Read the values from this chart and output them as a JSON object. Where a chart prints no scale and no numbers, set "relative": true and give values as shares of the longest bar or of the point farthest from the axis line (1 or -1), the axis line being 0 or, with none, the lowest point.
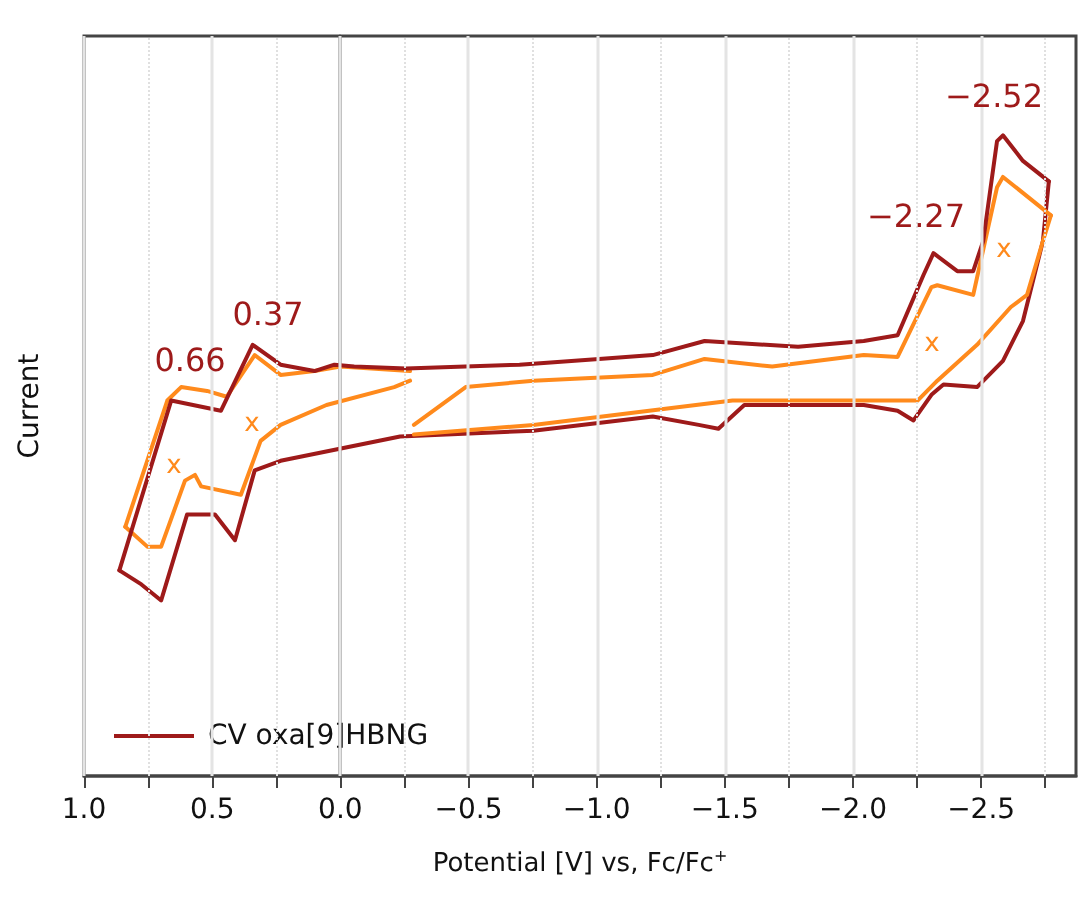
{
  "chart_data": {
    "type": "line",
    "relative": true,
    "xlabel": "Potential [V] vs, Fc/Fc$^{+}$",
    "ylabel": "Current",
    "xlim": [
      1.0,
      -2.87
    ],
    "xticks": [
      {
        "value": 1.0,
        "label": "1.0"
      },
      {
        "value": 0.75,
        "label": null
      },
      {
        "value": 0.5,
        "label": "0.5"
      },
      {
        "value": 0.25,
        "label": null
      },
      {
        "value": 0.0,
        "label": "0.0"
      },
      {
        "value": -0.25,
        "label": null
      },
      {
        "value": -0.5,
        "label": "−0.5"
      },
      {
        "value": -0.75,
        "label": null
      },
      {
        "value": -1.0,
        "label": "−1.0"
      },
      {
        "value": -1.25,
        "label": null
      },
      {
        "value": -1.5,
        "label": "−1.5"
      },
      {
        "value": -1.75,
        "label": null
      },
      {
        "value": -2.0,
        "label": "−2.0"
      },
      {
        "value": -2.25,
        "label": null
      },
      {
        "value": -2.5,
        "label": "−2.5"
      },
      {
        "value": -2.75,
        "label": null
      }
    ],
    "grid": "x",
    "legend": "bottom left",
    "marker": "none",
    "line_style": "solid",
    "series": [
      {
        "name": "CV oxa[9]HBNG",
        "color": "#9e1a1a",
        "x": [
          0.862,
          0.66,
          0.466,
          0.342,
          0.233,
          0.101,
          0.023,
          -0.054,
          -0.256,
          -0.699,
          -1.009,
          -1.219,
          -1.421,
          -1.786,
          -2.042,
          -2.174,
          -2.275,
          -2.314,
          -2.407,
          -2.469,
          -2.508,
          -2.562,
          -2.585,
          -2.663,
          -2.764
        ],
        "values": [
          0.321,
          0.586,
          0.57,
          0.673,
          0.642,
          0.632,
          0.642,
          0.639,
          0.636,
          0.642,
          0.651,
          0.657,
          0.679,
          0.67,
          0.679,
          0.688,
          0.782,
          0.816,
          0.788,
          0.788,
          0.835,
          0.991,
          1.0,
          0.96,
          0.928
        ]
      },
      {
        "color": "#9e1a1a",
        "x": [
          -2.764,
          -2.741,
          -2.663,
          -2.585,
          -2.484,
          -2.353,
          -2.306,
          -2.236,
          -2.174,
          -2.042,
          -1.786,
          -1.576,
          -1.475,
          -1.398,
          -1.219,
          -0.753,
          -0.233,
          0.233,
          0.334,
          0.411,
          0.489,
          0.598,
          0.699,
          0.776,
          0.862
        ],
        "values": [
          0.928,
          0.835,
          0.71,
          0.648,
          0.607,
          0.611,
          0.595,
          0.555,
          0.57,
          0.579,
          0.579,
          0.579,
          0.542,
          0.548,
          0.561,
          0.539,
          0.53,
          0.492,
          0.477,
          0.368,
          0.408,
          0.408,
          0.274,
          0.299,
          0.321
        ]
      },
      {
        "color": "#ff8a1c",
        "x": [
          -0.272,
          0.0,
          0.101,
          0.233,
          0.334,
          0.443,
          0.52,
          0.621,
          0.675,
          0.839
        ],
        "values": [
          0.632,
          0.639,
          0.632,
          0.626,
          0.657,
          0.592,
          0.601,
          0.607,
          0.586,
          0.389
        ]
      },
      {
        "color": "#ff8a1c",
        "x": [
          0.839,
          0.753,
          0.699,
          0.606,
          0.567,
          0.543,
          0.388,
          0.311,
          0.233,
          0.054,
          -0.21,
          -0.272
        ],
        "values": [
          0.389,
          0.358,
          0.358,
          0.461,
          0.47,
          0.452,
          0.439,
          0.523,
          0.548,
          0.579,
          0.607,
          0.617
        ]
      },
      {
        "color": "#ff8a1c",
        "x": [
          -0.287,
          -0.489,
          -0.753,
          -1.219,
          -1.421,
          -1.685,
          -2.042,
          -2.174,
          -2.306,
          -2.329,
          -2.469,
          -2.562,
          -2.585,
          -2.772
        ],
        "values": [
          0.548,
          0.607,
          0.617,
          0.626,
          0.651,
          0.639,
          0.657,
          0.654,
          0.763,
          0.766,
          0.751,
          0.919,
          0.935,
          0.875
        ]
      },
      {
        "color": "#ff8a1c",
        "x": [
          -2.772,
          -2.741,
          -2.679,
          -2.616,
          -2.484,
          -2.329,
          -2.252,
          -2.174,
          -1.786,
          -1.53,
          -0.753,
          -0.287
        ],
        "values": [
          0.875,
          0.835,
          0.751,
          0.732,
          0.673,
          0.617,
          0.586,
          0.586,
          0.586,
          0.586,
          0.548,
          0.533
        ]
      }
    ],
    "annotations": [
      "0.66",
      "0.37",
      "−2.27",
      "−2.52",
      "x",
      "x",
      "x",
      "x"
    ]
  }
}
